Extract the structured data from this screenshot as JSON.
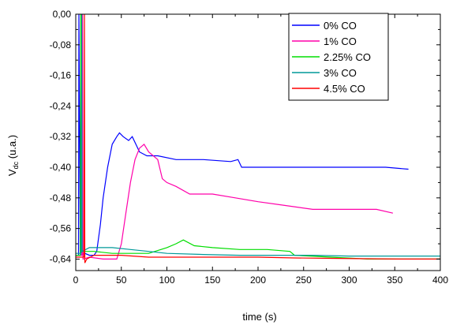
{
  "chart_data": {
    "type": "line",
    "title": "",
    "xlabel": "time (s)",
    "ylabel_main": "V",
    "ylabel_sub": "dc",
    "ylabel_unit": " (u.a.)",
    "xlim": [
      0,
      400
    ],
    "ylim": [
      -0.67,
      0.0
    ],
    "x_ticks": [
      0,
      50,
      100,
      150,
      200,
      250,
      300,
      350,
      400
    ],
    "y_ticks": [
      0.0,
      -0.08,
      -0.16,
      -0.24,
      -0.32,
      -0.4,
      -0.48,
      -0.56,
      -0.64
    ],
    "y_tick_labels": [
      "0,00",
      "-0,08",
      "-0,16",
      "-0,24",
      "-0,32",
      "-0,40",
      "-0,48",
      "-0,56",
      "-0,64"
    ],
    "grid": false,
    "legend_position": "top-right",
    "series": [
      {
        "name": "0% CO",
        "color": "#0000ff",
        "x": [
          0,
          3,
          3.5,
          5,
          10,
          15,
          20,
          23,
          27,
          30,
          35,
          40,
          45,
          48,
          52,
          58,
          62,
          66,
          70,
          78,
          90,
          110,
          140,
          170,
          178,
          182,
          190,
          200,
          250,
          300,
          340,
          365
        ],
        "y": [
          -0.63,
          -0.63,
          0.0,
          -0.63,
          -0.625,
          -0.63,
          -0.63,
          -0.62,
          -0.55,
          -0.48,
          -0.4,
          -0.34,
          -0.32,
          -0.31,
          -0.32,
          -0.33,
          -0.32,
          -0.34,
          -0.36,
          -0.37,
          -0.37,
          -0.38,
          -0.38,
          -0.385,
          -0.38,
          -0.4,
          -0.4,
          -0.4,
          -0.4,
          -0.4,
          -0.4,
          -0.405
        ]
      },
      {
        "name": "1% CO",
        "color": "#ff00aa",
        "x": [
          0,
          7,
          7.5,
          8,
          15,
          30,
          45,
          50,
          55,
          60,
          65,
          70,
          75,
          80,
          90,
          95,
          100,
          110,
          125,
          150,
          175,
          200,
          230,
          260,
          300,
          330,
          348
        ],
        "y": [
          -0.63,
          -0.63,
          0.0,
          -0.64,
          -0.635,
          -0.64,
          -0.64,
          -0.6,
          -0.52,
          -0.44,
          -0.38,
          -0.35,
          -0.34,
          -0.36,
          -0.38,
          -0.43,
          -0.44,
          -0.45,
          -0.47,
          -0.47,
          -0.48,
          -0.49,
          -0.5,
          -0.51,
          -0.51,
          -0.51,
          -0.52
        ]
      },
      {
        "name": "2.25% CO",
        "color": "#00dd00",
        "x": [
          0,
          5,
          5.5,
          6,
          20,
          40,
          60,
          80,
          100,
          110,
          118,
          130,
          150,
          180,
          210,
          235,
          240,
          280,
          320,
          360,
          400
        ],
        "y": [
          -0.63,
          -0.63,
          0.0,
          -0.62,
          -0.62,
          -0.625,
          -0.625,
          -0.625,
          -0.61,
          -0.6,
          -0.59,
          -0.605,
          -0.61,
          -0.615,
          -0.615,
          -0.62,
          -0.63,
          -0.635,
          -0.64,
          -0.64,
          -0.64
        ]
      },
      {
        "name": "3% CO",
        "color": "#009999",
        "x": [
          0,
          6,
          6.5,
          7,
          15,
          20,
          40,
          60,
          80,
          100,
          140,
          180,
          220,
          260,
          300,
          340,
          380,
          400
        ],
        "y": [
          -0.625,
          -0.625,
          0.0,
          -0.62,
          -0.61,
          -0.61,
          -0.61,
          -0.615,
          -0.62,
          -0.625,
          -0.628,
          -0.63,
          -0.63,
          -0.63,
          -0.632,
          -0.632,
          -0.632,
          -0.632
        ]
      },
      {
        "name": "4.5% CO",
        "color": "#ff0000",
        "x": [
          0,
          9,
          9.5,
          10,
          12,
          20,
          50,
          80,
          120,
          160,
          200,
          240,
          280,
          320,
          360,
          400
        ],
        "y": [
          -0.635,
          -0.635,
          0.0,
          -0.65,
          -0.64,
          -0.63,
          -0.63,
          -0.635,
          -0.635,
          -0.635,
          -0.635,
          -0.637,
          -0.638,
          -0.639,
          -0.64,
          -0.64
        ]
      }
    ]
  }
}
